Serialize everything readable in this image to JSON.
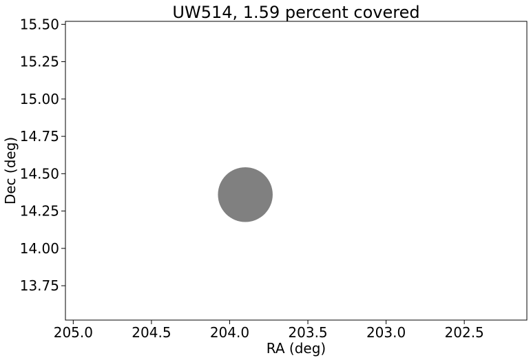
{
  "chart_data": {
    "type": "scatter",
    "title": "UW514, 1.59 percent covered",
    "xlabel": "RA (deg)",
    "ylabel": "Dec (deg)",
    "xlim": [
      205.05,
      202.1
    ],
    "ylim": [
      13.52,
      15.52
    ],
    "x_inverted": true,
    "xticks": [
      205.0,
      204.5,
      204.0,
      203.5,
      203.0,
      202.5
    ],
    "xtick_labels": [
      "205.0",
      "204.5",
      "204.0",
      "203.5",
      "203.0",
      "202.5"
    ],
    "yticks": [
      13.75,
      14.0,
      14.25,
      14.5,
      14.75,
      15.0,
      15.25,
      15.5
    ],
    "ytick_labels": [
      "13.75",
      "14.00",
      "14.25",
      "14.50",
      "14.75",
      "15.00",
      "15.25",
      "15.50"
    ],
    "grid": false,
    "series": [
      {
        "shape": "circle",
        "center_ra": 203.9,
        "center_dec": 14.36,
        "radius_deg": 0.175,
        "color": "#808080"
      }
    ]
  }
}
